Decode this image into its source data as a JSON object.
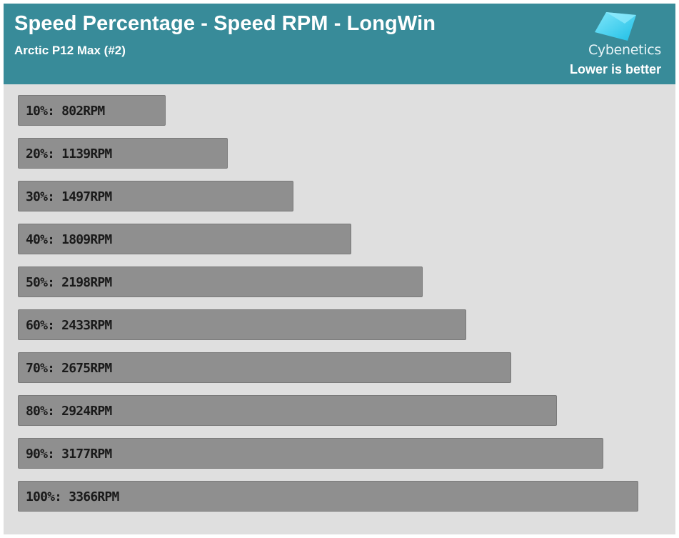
{
  "header": {
    "title": "Speed Percentage - Speed RPM - LongWin",
    "subtitle": "Arctic P12 Max (#2)",
    "logo_text": "Cybenetics",
    "note": "Lower is better"
  },
  "colors": {
    "header_bg": "#388b99",
    "chart_bg": "#dfdfdf",
    "bar_fill": "#8f8f8f",
    "logo_accent": "#3fd3f0"
  },
  "chart_data": {
    "type": "bar",
    "orientation": "horizontal",
    "title": "Speed Percentage - Speed RPM - LongWin",
    "subtitle": "Arctic P12 Max (#2)",
    "unit": "RPM",
    "categories": [
      "10%",
      "20%",
      "30%",
      "40%",
      "50%",
      "60%",
      "70%",
      "80%",
      "90%",
      "100%"
    ],
    "values": [
      802,
      1139,
      1497,
      1809,
      2198,
      2433,
      2675,
      2924,
      3177,
      3366
    ],
    "labels": [
      "10%: 802RPM",
      "20%: 1139RPM",
      "30%: 1497RPM",
      "40%: 1809RPM",
      "50%: 2198RPM",
      "60%: 2433RPM",
      "70%: 2675RPM",
      "80%: 2924RPM",
      "90%: 3177RPM",
      "100%: 3366RPM"
    ],
    "grid": false,
    "legend": "none"
  }
}
